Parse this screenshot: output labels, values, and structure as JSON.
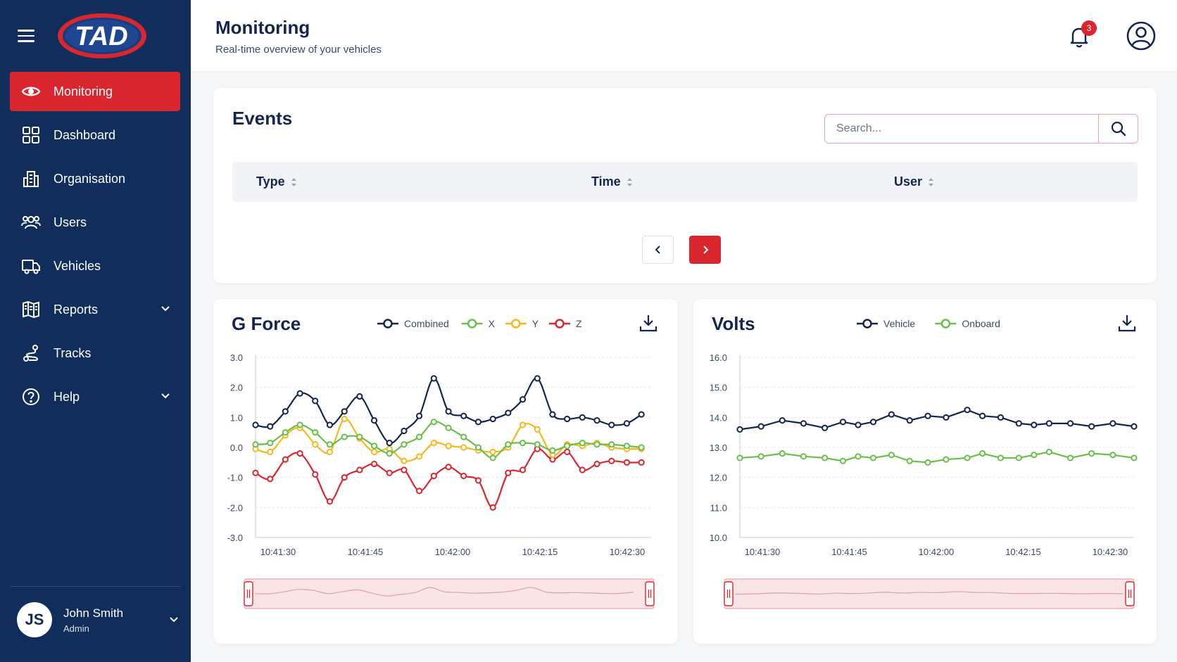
{
  "app": {
    "logo_text": "TAD",
    "brand_color": "#d9262f",
    "sidebar_color": "#102d5c"
  },
  "sidebar": {
    "items": [
      {
        "label": "Monitoring",
        "icon": "eye-icon",
        "active": true
      },
      {
        "label": "Dashboard",
        "icon": "grid-icon"
      },
      {
        "label": "Organisation",
        "icon": "building-icon"
      },
      {
        "label": "Users",
        "icon": "users-icon"
      },
      {
        "label": "Vehicles",
        "icon": "truck-icon"
      },
      {
        "label": "Reports",
        "icon": "map-icon",
        "expandable": true
      },
      {
        "label": "Tracks",
        "icon": "route-icon"
      },
      {
        "label": "Help",
        "icon": "help-circle-icon",
        "expandable": true
      }
    ],
    "user": {
      "initials": "JS",
      "name": "John Smith",
      "role": "Admin"
    }
  },
  "header": {
    "title": "Monitoring",
    "subtitle": "Real-time overview of your vehicles",
    "notifications_count": "3"
  },
  "events": {
    "title": "Events",
    "search_placeholder": "Search...",
    "columns": [
      "Type",
      "Time",
      "User"
    ]
  },
  "chart_data": [
    {
      "type": "line",
      "title": "G Force",
      "ylim": [
        -3,
        3
      ],
      "yticks": [
        "3.0",
        "2.0",
        "1.0",
        "0.0",
        "-1.0",
        "-2.0",
        "-3.0"
      ],
      "xticks": [
        "10:41:30",
        "10:41:45",
        "10:42:00",
        "10:42:15",
        "10:42:30"
      ],
      "xrange": [
        0,
        65
      ],
      "grid": true,
      "legend": "top",
      "series": [
        {
          "name": "Combined",
          "color": "#14264f",
          "x": [
            0,
            2.4,
            4.9,
            7.3,
            9.8,
            12.2,
            14.6,
            17.1,
            19.5,
            22,
            24.4,
            26.9,
            29.3,
            31.7,
            34.2,
            36.6,
            39,
            41.5,
            43.9,
            46.3,
            48.8,
            51.2,
            53.7,
            56.1,
            58.5,
            61,
            63.4
          ],
          "y": [
            0.75,
            0.7,
            1.2,
            1.8,
            1.55,
            0.75,
            1.2,
            1.7,
            0.9,
            0.15,
            0.55,
            1.05,
            2.3,
            1.2,
            1.05,
            0.85,
            0.95,
            1.15,
            1.6,
            2.3,
            1.1,
            0.95,
            1.0,
            0.9,
            0.75,
            0.8,
            1.1
          ]
        },
        {
          "name": "X",
          "color": "#6abf4b",
          "x": [
            0,
            2.4,
            4.9,
            7.3,
            9.8,
            12.2,
            14.6,
            17.1,
            19.5,
            22,
            24.4,
            26.9,
            29.3,
            31.7,
            34.2,
            36.6,
            39,
            41.5,
            43.9,
            46.3,
            48.8,
            51.2,
            53.7,
            56.1,
            58.5,
            61,
            63.4
          ],
          "y": [
            0.1,
            0.15,
            0.5,
            0.75,
            0.5,
            0.1,
            0.35,
            0.35,
            0.05,
            -0.2,
            0.1,
            0.35,
            0.85,
            0.65,
            0.35,
            0.0,
            -0.35,
            0.1,
            0.15,
            0.1,
            -0.1,
            0.05,
            0.15,
            0.1,
            0.1,
            0.05,
            0.0
          ]
        },
        {
          "name": "Y",
          "color": "#f4b81c",
          "x": [
            0,
            2.4,
            4.9,
            7.3,
            9.8,
            12.2,
            14.6,
            17.1,
            19.5,
            22,
            24.4,
            26.9,
            29.3,
            31.7,
            34.2,
            36.6,
            39,
            41.5,
            43.9,
            46.3,
            48.8,
            51.2,
            53.7,
            56.1,
            58.5,
            61,
            63.4
          ],
          "y": [
            -0.05,
            -0.15,
            0.4,
            0.65,
            0.1,
            -0.15,
            0.95,
            0.3,
            -0.15,
            -0.05,
            -0.45,
            -0.3,
            0.15,
            0.05,
            0.0,
            -0.1,
            -0.15,
            0.0,
            0.75,
            0.6,
            -0.25,
            0.1,
            0.05,
            0.15,
            0.0,
            -0.05,
            -0.05
          ]
        },
        {
          "name": "Z",
          "color": "#d9262f",
          "x": [
            0,
            2.4,
            4.9,
            7.3,
            9.8,
            12.2,
            14.6,
            17.1,
            19.5,
            22,
            24.4,
            26.9,
            29.3,
            31.7,
            34.2,
            36.6,
            39,
            41.5,
            43.9,
            46.3,
            48.8,
            51.2,
            53.7,
            56.1,
            58.5,
            61,
            63.4
          ],
          "y": [
            -0.85,
            -1.05,
            -0.4,
            -0.2,
            -0.9,
            -1.8,
            -1.0,
            -0.75,
            -0.55,
            -0.85,
            -0.75,
            -1.45,
            -0.95,
            -0.65,
            -0.95,
            -1.1,
            -2.0,
            -0.85,
            -0.75,
            -0.05,
            -0.4,
            -0.15,
            -0.75,
            -0.55,
            -0.45,
            -0.5,
            -0.5
          ]
        }
      ]
    },
    {
      "type": "line",
      "title": "Volts",
      "ylim": [
        10,
        16
      ],
      "yticks": [
        "16.0",
        "15.0",
        "14.0",
        "13.0",
        "12.0",
        "11.0",
        "10.0"
      ],
      "xticks": [
        "10:41:30",
        "10:41:45",
        "10:42:00",
        "10:42:15",
        "10:42:30"
      ],
      "xrange": [
        0,
        65
      ],
      "grid": true,
      "legend": "top",
      "series": [
        {
          "name": "Vehicle",
          "color": "#14264f",
          "x": [
            0,
            3.5,
            7,
            10.5,
            14,
            17,
            19.5,
            22,
            25,
            28,
            31,
            34,
            37.5,
            40,
            43,
            46,
            48.5,
            51,
            54.5,
            58,
            61.5,
            65
          ],
          "y": [
            13.6,
            13.7,
            13.9,
            13.8,
            13.65,
            13.85,
            13.75,
            13.85,
            14.1,
            13.9,
            14.05,
            14.0,
            14.25,
            14.05,
            14.0,
            13.8,
            13.75,
            13.8,
            13.8,
            13.7,
            13.8,
            13.7
          ]
        },
        {
          "name": "Onboard",
          "color": "#6abf4b",
          "x": [
            0,
            3.5,
            7,
            10.5,
            14,
            17,
            19.5,
            22,
            25,
            28,
            31,
            34,
            37.5,
            40,
            43,
            46,
            48.5,
            51,
            54.5,
            58,
            61.5,
            65
          ],
          "y": [
            12.65,
            12.7,
            12.8,
            12.7,
            12.65,
            12.55,
            12.7,
            12.65,
            12.75,
            12.55,
            12.5,
            12.6,
            12.65,
            12.8,
            12.65,
            12.65,
            12.75,
            12.85,
            12.65,
            12.8,
            12.75,
            12.65
          ]
        }
      ]
    }
  ]
}
